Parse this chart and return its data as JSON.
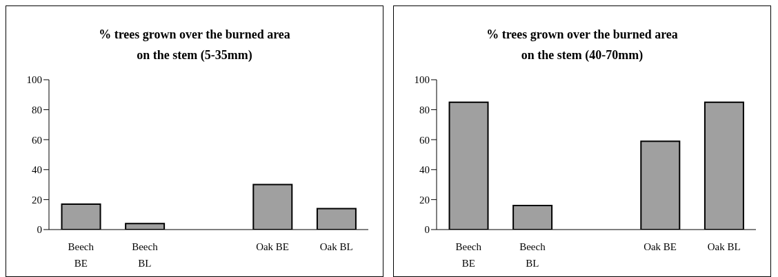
{
  "chart_data": [
    {
      "type": "bar",
      "title": "% trees grown over the burned area\non the stem (5-35mm)",
      "categories": [
        "Beech BE",
        "Beech BL",
        null,
        "Oak BE",
        "Oak BL"
      ],
      "values": [
        17,
        4,
        null,
        30,
        14
      ],
      "color": "#a0a0a0",
      "ylim": [
        0,
        100
      ],
      "yticks": [
        0,
        20,
        40,
        60,
        80,
        100
      ],
      "grid": false,
      "legend": false
    },
    {
      "type": "bar",
      "title": "% trees grown over the burned area\non the stem (40-70mm)",
      "categories": [
        "Beech BE",
        "Beech BL",
        null,
        "Oak BE",
        "Oak BL"
      ],
      "values": [
        85,
        16,
        null,
        59,
        85
      ],
      "color": "#a0a0a0",
      "ylim": [
        0,
        100
      ],
      "yticks": [
        0,
        20,
        40,
        60,
        80,
        100
      ],
      "grid": false,
      "legend": false
    }
  ]
}
